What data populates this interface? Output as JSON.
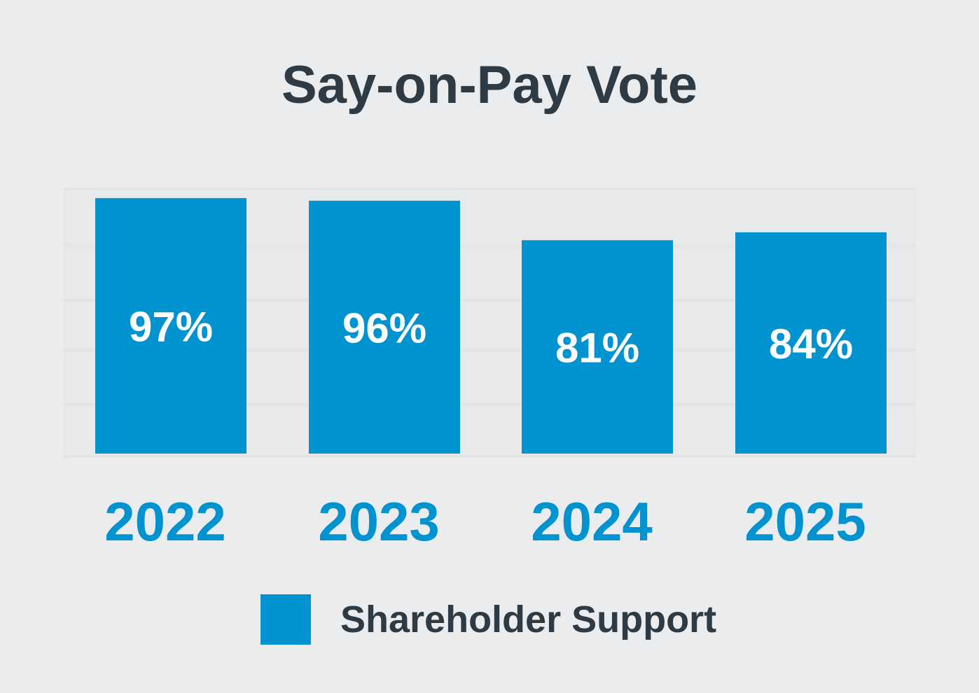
{
  "chart_data": {
    "type": "bar",
    "title": "Say-on-Pay Vote",
    "categories": [
      "2022",
      "2023",
      "2024",
      "2025"
    ],
    "series": [
      {
        "name": "Shareholder Support",
        "values": [
          97,
          96,
          81,
          84
        ],
        "labels": [
          "97%",
          "96%",
          "81%",
          "84%"
        ]
      }
    ],
    "ylim": [
      0,
      100
    ],
    "grid": true,
    "legend_placement": "bottom",
    "colors": {
      "bar": "#0093cf",
      "category_label": "#0093cf",
      "title": "#2f3b44",
      "bar_label": "#ffffff",
      "grid": "#e2e4e6",
      "background": "#ebeced"
    }
  }
}
